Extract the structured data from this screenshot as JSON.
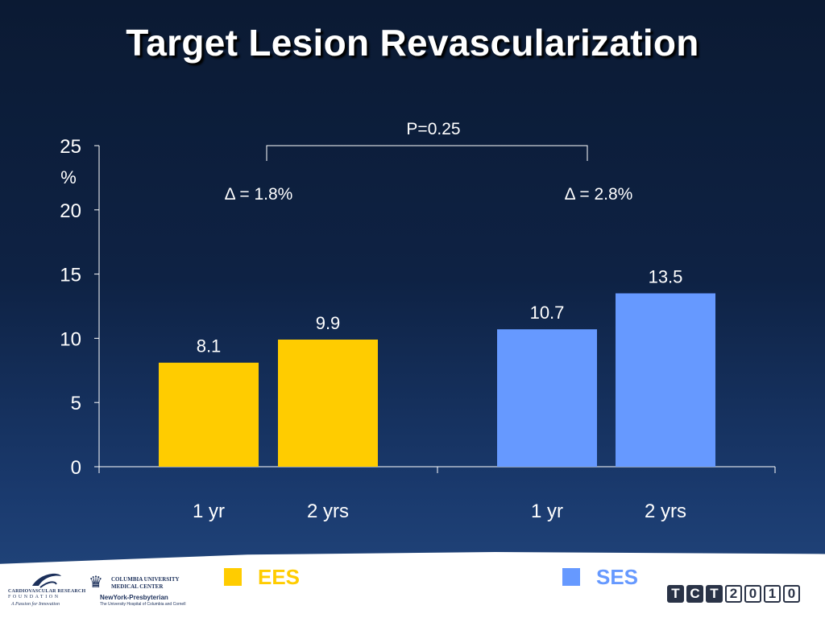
{
  "title": "Target Lesion Revascularization",
  "colors": {
    "ees": "#ffcc00",
    "ses": "#6699ff",
    "axis": "#ffffff",
    "text": "#ffffff"
  },
  "chart_data": {
    "type": "bar",
    "title": "Target Lesion Revascularization",
    "ylabel": "%",
    "ylim": [
      0,
      25
    ],
    "yticks": [
      0,
      5,
      10,
      15,
      20,
      25
    ],
    "grid": false,
    "legend": "bottom",
    "groups": [
      {
        "series": "EES",
        "color": "#ffcc00",
        "categories": [
          "1 yr",
          "2 yrs"
        ],
        "values": [
          8.1,
          9.9
        ],
        "labels": [
          "8.1",
          "9.9"
        ],
        "delta_label": "Δ = 1.8%"
      },
      {
        "series": "SES",
        "color": "#6699ff",
        "categories": [
          "1 yr",
          "2 yrs"
        ],
        "values": [
          10.7,
          13.5
        ],
        "labels": [
          "10.7",
          "13.5"
        ],
        "delta_label": "Δ = 2.8%"
      }
    ],
    "annotations": {
      "p_value": "P=0.25"
    }
  },
  "legend": [
    {
      "label": "EES",
      "color": "#ffcc00"
    },
    {
      "label": "SES",
      "color": "#6699ff"
    }
  ],
  "footer": {
    "crf_name": "CARDIOVASCULAR RESEARCH",
    "crf_foundation": "FOUNDATION",
    "crf_tagline": "A Passion for Innovation",
    "cu_line1": "COLUMBIA UNIVERSITY",
    "cu_line2": "MEDICAL CENTER",
    "nyp_name": "NewYork-Presbyterian",
    "nyp_sub": "The University Hospital of Columbia and Cornell",
    "tct_letters": [
      "T",
      "C",
      "T",
      "2",
      "0",
      "1",
      "0"
    ]
  }
}
